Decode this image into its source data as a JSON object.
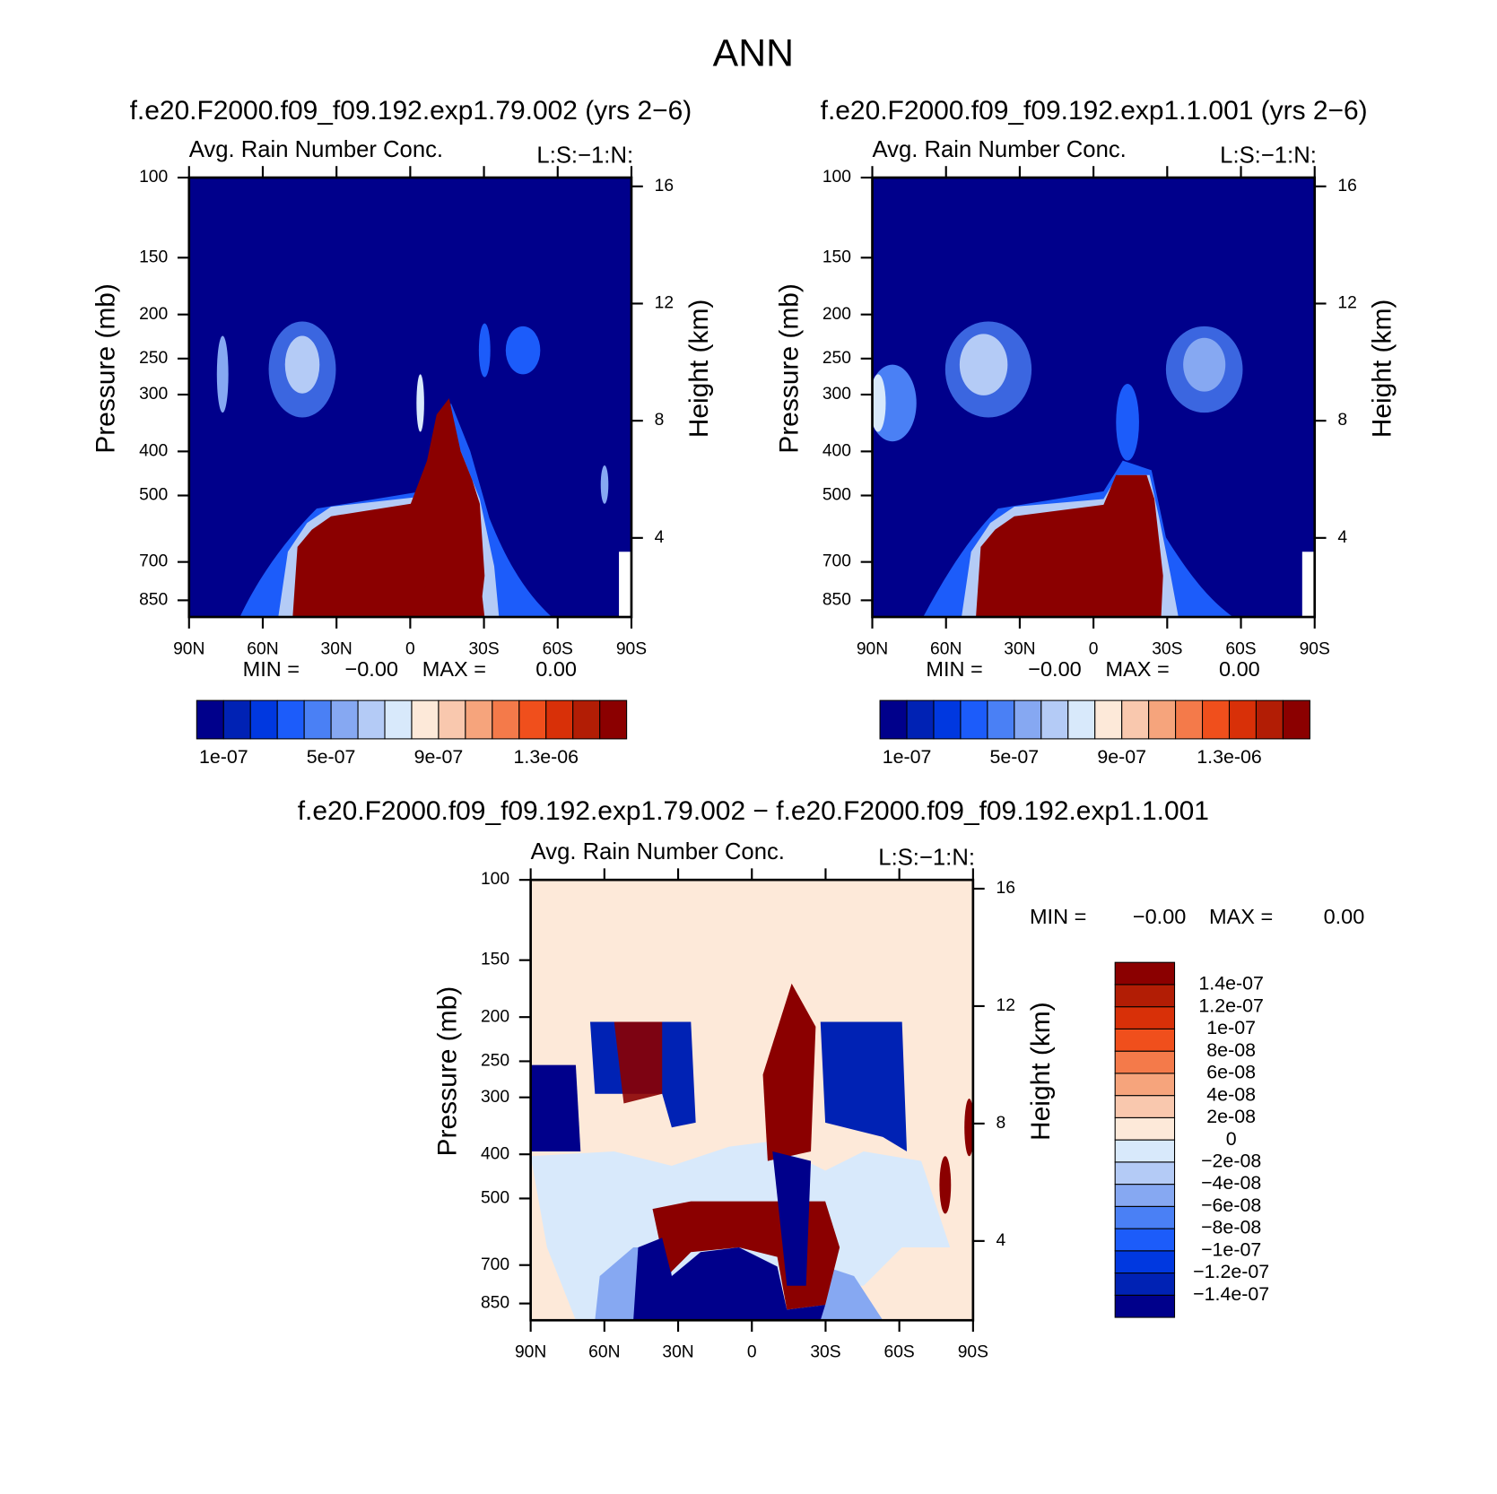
{
  "title": "ANN",
  "chart_data": [
    {
      "type": "contour",
      "case": "f.e20.F2000.f09_f09.192.exp1.79.002 (yrs 2−6)",
      "title": "Avg. Rain Number Conc.",
      "right_title": "L:S:−1:N:",
      "ylabel": "Pressure (mb)",
      "y2label": "Height (km)",
      "xlim": [
        90,
        -90
      ],
      "xticks": [
        {
          "value": 90,
          "label": "90N"
        },
        {
          "value": 60,
          "label": "60N"
        },
        {
          "value": 30,
          "label": "30N"
        },
        0,
        {
          "value": -30,
          "label": "30S"
        },
        {
          "value": -60,
          "label": "60S"
        },
        {
          "value": -90,
          "label": "90S"
        }
      ],
      "ylim": [
        925,
        100
      ],
      "log_y": true,
      "yticks": [
        100,
        150,
        200,
        250,
        300,
        400,
        500,
        700,
        850
      ],
      "y2lim": [
        1.3,
        16.3
      ],
      "y2ticks": [
        4,
        8,
        12,
        16
      ],
      "min_label": "MIN =",
      "min": "−0.00",
      "max_label": "MAX =",
      "max": "0.00",
      "colorbar": {
        "orientation": "horizontal",
        "clim": [
          0,
          1.6e-06
        ],
        "colors": [
          "#00008b",
          "#0022b4",
          "#0038e0",
          "#1c5cfa",
          "#4a80f5",
          "#86a8f2",
          "#b4cbf6",
          "#d8e9fb",
          "#fde9d9",
          "#f9c8ae",
          "#f6a47c",
          "#f47a4a",
          "#f04f1c",
          "#d83008",
          "#b21d05",
          "#8b0000"
        ],
        "ticks": [
          {
            "value": 1e-07,
            "label": "1e-07"
          },
          {
            "value": 5e-07,
            "label": "5e-07"
          },
          {
            "value": 9e-07,
            "label": "9e-07"
          },
          {
            "value": 1.3e-06,
            "label": "1.3e-06"
          }
        ]
      }
    },
    {
      "type": "contour",
      "case": "f.e20.F2000.f09_f09.192.exp1.1.001 (yrs 2−6)",
      "title": "Avg. Rain Number Conc.",
      "right_title": "L:S:−1:N:",
      "ylabel": "Pressure (mb)",
      "y2label": "Height (km)",
      "xlim": [
        90,
        -90
      ],
      "xticks": [
        {
          "value": 90,
          "label": "90N"
        },
        {
          "value": 60,
          "label": "60N"
        },
        {
          "value": 30,
          "label": "30N"
        },
        0,
        {
          "value": -30,
          "label": "30S"
        },
        {
          "value": -60,
          "label": "60S"
        },
        {
          "value": -90,
          "label": "90S"
        }
      ],
      "ylim": [
        925,
        100
      ],
      "log_y": true,
      "yticks": [
        100,
        150,
        200,
        250,
        300,
        400,
        500,
        700,
        850
      ],
      "y2lim": [
        1.3,
        16.3
      ],
      "y2ticks": [
        4,
        8,
        12,
        16
      ],
      "min_label": "MIN =",
      "min": "−0.00",
      "max_label": "MAX =",
      "max": "0.00",
      "colorbar": {
        "orientation": "horizontal",
        "clim": [
          0,
          1.6e-06
        ],
        "colors": [
          "#00008b",
          "#0022b4",
          "#0038e0",
          "#1c5cfa",
          "#4a80f5",
          "#86a8f2",
          "#b4cbf6",
          "#d8e9fb",
          "#fde9d9",
          "#f9c8ae",
          "#f6a47c",
          "#f47a4a",
          "#f04f1c",
          "#d83008",
          "#b21d05",
          "#8b0000"
        ],
        "ticks": [
          {
            "value": 1e-07,
            "label": "1e-07"
          },
          {
            "value": 5e-07,
            "label": "5e-07"
          },
          {
            "value": 9e-07,
            "label": "9e-07"
          },
          {
            "value": 1.3e-06,
            "label": "1.3e-06"
          }
        ]
      }
    },
    {
      "type": "contour",
      "case": "f.e20.F2000.f09_f09.192.exp1.79.002 − f.e20.F2000.f09_f09.192.exp1.1.001",
      "title": "Avg. Rain Number Conc.",
      "right_title": "L:S:−1:N:",
      "ylabel": "Pressure (mb)",
      "y2label": "Height (km)",
      "xlim": [
        90,
        -90
      ],
      "xticks": [
        {
          "value": 90,
          "label": "90N"
        },
        {
          "value": 60,
          "label": "60N"
        },
        {
          "value": 30,
          "label": "30N"
        },
        0,
        {
          "value": -30,
          "label": "30S"
        },
        {
          "value": -60,
          "label": "60S"
        },
        {
          "value": -90,
          "label": "90S"
        }
      ],
      "ylim": [
        925,
        100
      ],
      "log_y": true,
      "yticks": [
        100,
        150,
        200,
        250,
        300,
        400,
        500,
        700,
        850
      ],
      "y2lim": [
        1.3,
        16.3
      ],
      "y2ticks": [
        4,
        8,
        12,
        16
      ],
      "min_label": "MIN =",
      "min": "−0.00",
      "max_label": "MAX =",
      "max": "0.00",
      "colorbar": {
        "orientation": "vertical",
        "clim": [
          -1.6e-07,
          1.6e-07
        ],
        "colors": [
          "#00008b",
          "#0022b4",
          "#0038e0",
          "#1c5cfa",
          "#4a80f5",
          "#86a8f2",
          "#b4cbf6",
          "#d8e9fb",
          "#fde9d9",
          "#f9c8ae",
          "#f6a47c",
          "#f47a4a",
          "#f04f1c",
          "#d83008",
          "#b21d05",
          "#8b0000"
        ],
        "ticks": [
          {
            "value": 1.4e-07,
            "label": "1.4e-07"
          },
          {
            "value": 1.2e-07,
            "label": "1.2e-07"
          },
          {
            "value": 1e-07,
            "label": "1e-07"
          },
          {
            "value": 8e-08,
            "label": "8e-08"
          },
          {
            "value": 6e-08,
            "label": "6e-08"
          },
          {
            "value": 4e-08,
            "label": "4e-08"
          },
          {
            "value": 2e-08,
            "label": "2e-08"
          },
          0,
          {
            "value": -2e-08,
            "label": "−2e-08"
          },
          {
            "value": -4e-08,
            "label": "−4e-08"
          },
          {
            "value": -6e-08,
            "label": "−6e-08"
          },
          {
            "value": -8e-08,
            "label": "−8e-08"
          },
          {
            "value": -1e-07,
            "label": "−1e-07"
          },
          {
            "value": -1.2e-07,
            "label": "−1.2e-07"
          },
          {
            "value": -1.4e-07,
            "label": "−1.4e-07"
          }
        ]
      }
    }
  ]
}
